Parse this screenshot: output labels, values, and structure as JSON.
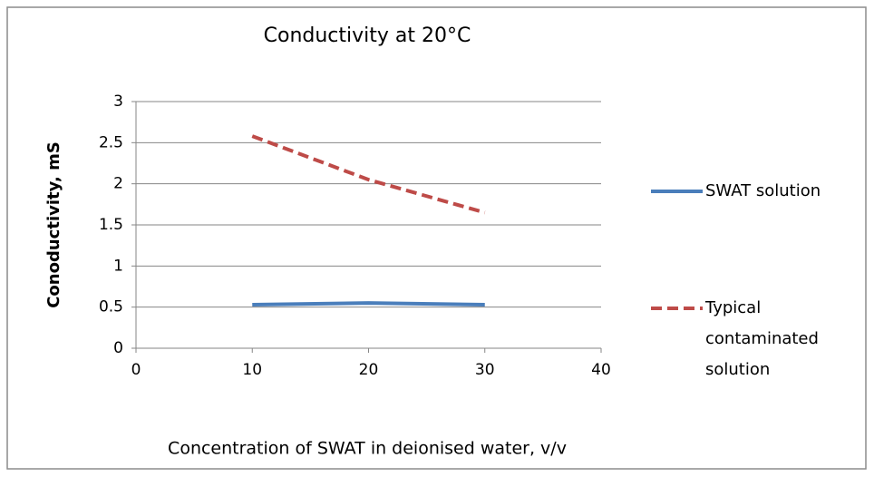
{
  "chart_data": {
    "type": "line",
    "title": "Conductivity at 20°C",
    "xlabel": "Concentration of SWAT in deionised water, v/v",
    "ylabel": "Conoductivity, mS",
    "x": [
      10,
      20,
      30
    ],
    "series": [
      {
        "name": "SWAT solution",
        "color": "#4a7ebb",
        "line_style": "solid",
        "values": [
          0.53,
          0.55,
          0.53
        ]
      },
      {
        "name": "Typical contaminated solution",
        "color": "#be4b48",
        "line_style": "dashed",
        "values": [
          2.58,
          2.05,
          1.65
        ]
      }
    ],
    "xlim": [
      0,
      40
    ],
    "xticks": [
      0,
      10,
      20,
      30,
      40
    ],
    "ylim": [
      0,
      3
    ],
    "yticks": [
      0,
      0.5,
      1,
      1.5,
      2,
      2.5,
      3
    ],
    "grid": true,
    "legend": "right"
  }
}
